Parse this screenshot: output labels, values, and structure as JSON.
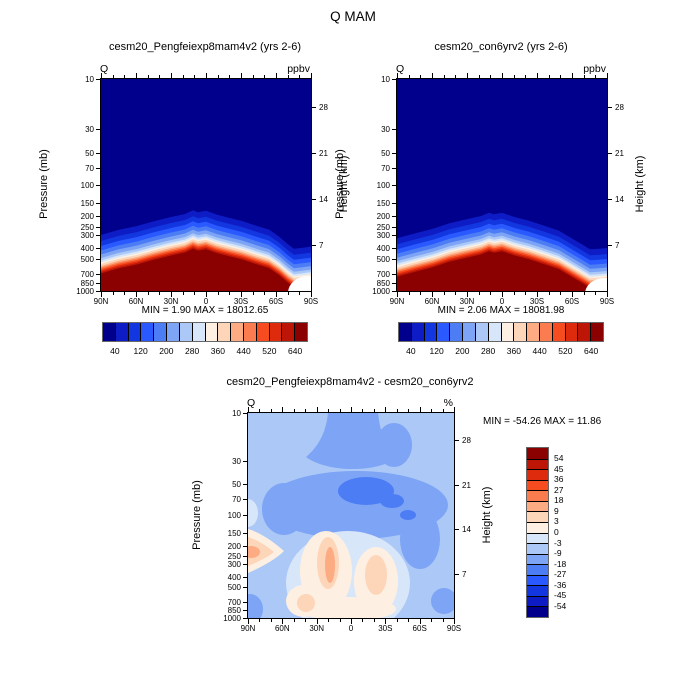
{
  "main_title": "Q MAM",
  "palette": [
    "#00008c",
    "#0d1cc4",
    "#1236e0",
    "#2a59ff",
    "#4d7df4",
    "#7da4f5",
    "#abc8f7",
    "#d8e6fa",
    "#fdf0e2",
    "#fdd5b9",
    "#fcab82",
    "#fb7c4e",
    "#f74c1f",
    "#de2b0e",
    "#bd1506",
    "#8b0000"
  ],
  "shared": {
    "var_label": "Q",
    "ylabel_left": "Pressure (mb)",
    "ylabel_right": "Height (km)",
    "lat_labels": [
      "90N",
      "60N",
      "30N",
      "0",
      "30S",
      "60S",
      "90S"
    ],
    "pressure_ticks": [
      10,
      30,
      50,
      70,
      100,
      150,
      200,
      250,
      300,
      400,
      500,
      700,
      850,
      1000
    ],
    "height_ticks": [
      28,
      21,
      14,
      7
    ]
  },
  "panels": {
    "left": {
      "title": "cesm20_Pengfeiexp8mam4v2 (yrs 2-6)",
      "unit": "ppbv",
      "minmax": "MIN =  1.90  MAX = 18012.65"
    },
    "right": {
      "title": "cesm20_con6yrv2 (yrs 2-6)",
      "unit": "ppbv",
      "minmax": "MIN =  2.06  MAX = 18081.98"
    },
    "diff": {
      "title": "cesm20_Pengfeiexp8mam4v2 - cesm20_con6yrv2",
      "unit": "%",
      "minmax": "MIN = -54.26  MAX =  11.86"
    }
  },
  "colorbar_top": {
    "labels": [
      "40",
      "120",
      "200",
      "280",
      "360",
      "440",
      "520",
      "640"
    ]
  },
  "colorbar_diff": {
    "labels": [
      "54",
      "45",
      "36",
      "27",
      "18",
      "9",
      "3",
      "0",
      "-3",
      "-9",
      "-18",
      "-27",
      "-36",
      "-45",
      "-54"
    ]
  },
  "chart_data": [
    {
      "type": "heatmap",
      "title": "cesm20_Pengfeiexp8mam4v2 (yrs 2-6)",
      "variable": "Q",
      "units": "ppbv",
      "x_ticks": [
        "90N",
        "60N",
        "30N",
        "0",
        "30S",
        "60S",
        "90S"
      ],
      "y_axis": {
        "label": "Pressure (mb)",
        "scale": "log",
        "range": [
          10,
          1000
        ],
        "ticks": [
          10,
          30,
          50,
          70,
          100,
          150,
          200,
          250,
          300,
          400,
          500,
          700,
          850,
          1000
        ]
      },
      "y2_axis": {
        "label": "Height (km)",
        "ticks": [
          28,
          21,
          14,
          7
        ]
      },
      "colorbar_labeled_levels": [
        40,
        120,
        200,
        280,
        360,
        440,
        520,
        640
      ],
      "n_color_segments": 16,
      "min": 1.9,
      "max": 18012.65,
      "transition_pressure_mb_by_lat": {
        "90N": 520,
        "60N": 430,
        "30N": 355,
        "10N": 305,
        "0": 310,
        "30S": 360,
        "60S": 560,
        "75S": 700,
        "90S": 670
      },
      "description": "Q < 40 ppbv (dark navy) above the tropopause; > 640 ppbv (dark red) below; sharp blue-white-red transition highest (~300 mb) near the equator, descending toward both poles; white terrain-mask notch near 90S below ~700 mb."
    },
    {
      "type": "heatmap",
      "title": "cesm20_con6yrv2 (yrs 2-6)",
      "variable": "Q",
      "units": "ppbv",
      "x_ticks": [
        "90N",
        "60N",
        "30N",
        "0",
        "30S",
        "60S",
        "90S"
      ],
      "y_axis": {
        "label": "Pressure (mb)",
        "scale": "log",
        "range": [
          10,
          1000
        ],
        "ticks": [
          10,
          30,
          50,
          70,
          100,
          150,
          200,
          250,
          300,
          400,
          500,
          700,
          850,
          1000
        ]
      },
      "y2_axis": {
        "label": "Height (km)",
        "ticks": [
          28,
          21,
          14,
          7
        ]
      },
      "colorbar_labeled_levels": [
        40,
        120,
        200,
        280,
        360,
        440,
        520,
        640
      ],
      "n_color_segments": 16,
      "min": 2.06,
      "max": 18081.98,
      "transition_pressure_mb_by_lat": {
        "90N": 560,
        "60N": 455,
        "30N": 372,
        "10N": 322,
        "0": 322,
        "30S": 382,
        "60S": 640,
        "75S": 710,
        "90S": 690
      },
      "description": "Same structure as experiment panel; transition slightly lower; white terrain-mask notch near 90S below ~700 mb."
    },
    {
      "type": "heatmap",
      "title": "cesm20_Pengfeiexp8mam4v2 - cesm20_con6yrv2",
      "variable": "Q",
      "units": "%",
      "x_ticks": [
        "90N",
        "60N",
        "30N",
        "0",
        "30S",
        "60S",
        "90S"
      ],
      "y_axis": {
        "label": "Pressure (mb)",
        "scale": "log",
        "range": [
          10,
          1000
        ],
        "ticks": [
          10,
          30,
          50,
          70,
          100,
          150,
          200,
          250,
          300,
          400,
          500,
          700,
          850,
          1000
        ]
      },
      "y2_axis": {
        "label": "Height (km)",
        "ticks": [
          28,
          21,
          14,
          7
        ]
      },
      "contour_levels": [
        -54,
        -45,
        -36,
        -27,
        -18,
        -9,
        -3,
        0,
        3,
        9,
        18,
        27,
        36,
        45,
        54
      ],
      "n_color_segments": 16,
      "min": -54.26,
      "max": 11.86,
      "description": "Field mostly -3 to -9% (light blue); -9 to -18% plume from top of domain spreading over 30-150 mb; -18 to -27% core near 50-70 mb over equator-10S and a small core near 100 mb at ~45S; positive 3-18% wedge at 90N near 150-300 mb; weak 0-9% patches (max ~12%) through the tropical troposphere 150-1000 mb."
    }
  ]
}
